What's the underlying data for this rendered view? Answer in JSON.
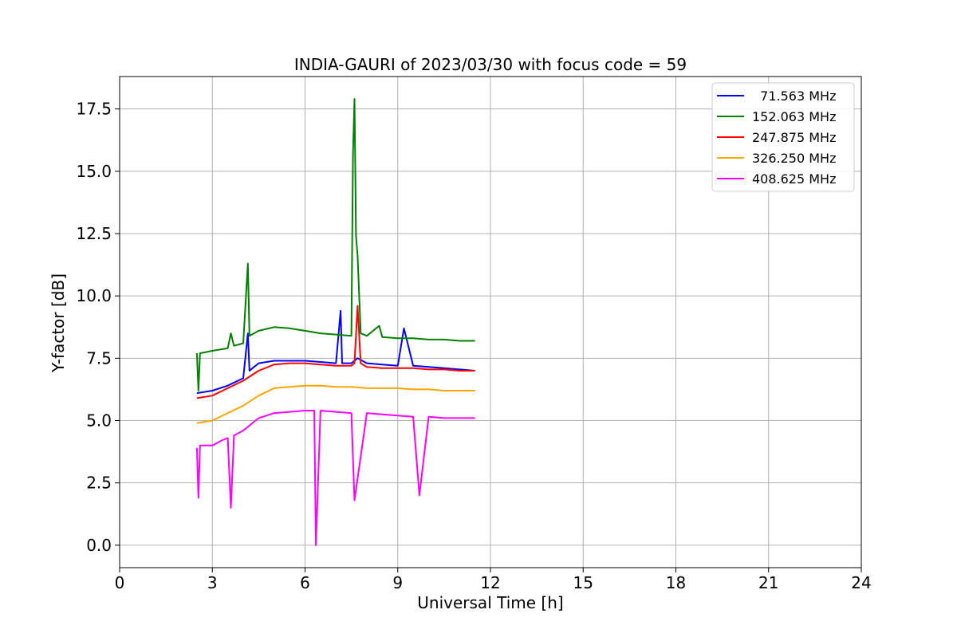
{
  "chart_data": {
    "type": "line",
    "title": "INDIA-GAURI of 2023/03/30 with focus code = 59",
    "xlabel": "Universal Time [h]",
    "ylabel": "Y-factor [dB]",
    "xlim": [
      0,
      24
    ],
    "ylim": [
      -0.9,
      18.8
    ],
    "x_ticks": [
      0,
      3,
      6,
      9,
      12,
      15,
      18,
      21,
      24
    ],
    "x_tick_labels": [
      "0",
      "3",
      "6",
      "9",
      "12",
      "15",
      "18",
      "21",
      "24"
    ],
    "y_ticks": [
      0.0,
      2.5,
      5.0,
      7.5,
      10.0,
      12.5,
      15.0,
      17.5
    ],
    "y_tick_labels": [
      "0.0",
      "2.5",
      "5.0",
      "7.5",
      "10.0",
      "12.5",
      "15.0",
      "17.5"
    ],
    "grid": true,
    "legend_position": "top-right",
    "series": [
      {
        "name": "  71.563 MHz",
        "color": "#0000ff",
        "x": [
          2.5,
          3.0,
          3.5,
          4.0,
          4.15,
          4.2,
          4.3,
          4.5,
          5.0,
          5.5,
          6.0,
          6.5,
          7.0,
          7.15,
          7.2,
          7.5,
          7.7,
          8.0,
          8.5,
          9.0,
          9.2,
          9.5,
          10.0,
          10.5,
          11.0,
          11.5
        ],
        "y": [
          6.1,
          6.2,
          6.4,
          6.7,
          8.5,
          7.0,
          7.1,
          7.3,
          7.4,
          7.4,
          7.4,
          7.35,
          7.3,
          9.4,
          7.3,
          7.3,
          7.5,
          7.3,
          7.25,
          7.2,
          8.7,
          7.2,
          7.15,
          7.1,
          7.05,
          7.0
        ]
      },
      {
        "name": "152.063 MHz",
        "color": "#008000",
        "x": [
          2.5,
          2.55,
          2.6,
          3.0,
          3.5,
          3.6,
          3.7,
          4.0,
          4.15,
          4.2,
          4.5,
          5.0,
          5.5,
          6.0,
          6.5,
          7.0,
          7.5,
          7.55,
          7.6,
          7.65,
          7.7,
          7.8,
          8.0,
          8.4,
          8.5,
          9.0,
          9.5,
          10.0,
          10.5,
          11.0,
          11.5
        ],
        "y": [
          7.7,
          6.2,
          7.7,
          7.8,
          7.9,
          8.5,
          8.0,
          8.1,
          11.3,
          8.4,
          8.6,
          8.75,
          8.7,
          8.6,
          8.5,
          8.45,
          8.4,
          15.7,
          17.9,
          12.4,
          11.6,
          8.5,
          8.4,
          8.8,
          8.35,
          8.3,
          8.3,
          8.25,
          8.25,
          8.2,
          8.2
        ]
      },
      {
        "name": "247.875 MHz",
        "color": "#ff0000",
        "x": [
          2.5,
          3.0,
          3.5,
          4.0,
          4.5,
          5.0,
          5.5,
          6.0,
          6.5,
          7.0,
          7.5,
          7.6,
          7.7,
          7.8,
          8.0,
          8.5,
          9.0,
          9.5,
          10.0,
          10.5,
          11.0,
          11.5
        ],
        "y": [
          5.9,
          6.0,
          6.3,
          6.6,
          7.0,
          7.25,
          7.3,
          7.3,
          7.25,
          7.2,
          7.2,
          7.3,
          9.6,
          7.3,
          7.15,
          7.1,
          7.1,
          7.1,
          7.05,
          7.05,
          7.0,
          7.0
        ]
      },
      {
        "name": "326.250 MHz",
        "color": "#ffa500",
        "x": [
          2.5,
          3.0,
          3.5,
          4.0,
          4.5,
          5.0,
          5.5,
          6.0,
          6.5,
          7.0,
          7.5,
          8.0,
          8.5,
          9.0,
          9.5,
          10.0,
          10.5,
          11.0,
          11.5
        ],
        "y": [
          4.9,
          5.0,
          5.3,
          5.6,
          6.0,
          6.3,
          6.35,
          6.4,
          6.4,
          6.35,
          6.35,
          6.3,
          6.3,
          6.3,
          6.25,
          6.25,
          6.2,
          6.2,
          6.2
        ]
      },
      {
        "name": "408.625 MHz",
        "color": "#ff00ff",
        "x": [
          2.5,
          2.55,
          2.6,
          3.0,
          3.3,
          3.5,
          3.6,
          3.7,
          4.0,
          4.3,
          4.5,
          5.0,
          5.5,
          6.0,
          6.3,
          6.35,
          6.5,
          7.0,
          7.5,
          7.6,
          8.0,
          8.5,
          9.0,
          9.5,
          9.7,
          10.0,
          10.5,
          11.0,
          11.5
        ],
        "y": [
          3.9,
          1.9,
          4.0,
          4.0,
          4.2,
          4.3,
          1.5,
          4.4,
          4.6,
          4.9,
          5.1,
          5.3,
          5.35,
          5.4,
          5.4,
          0.0,
          5.4,
          5.35,
          5.3,
          1.8,
          5.3,
          5.25,
          5.2,
          5.15,
          2.0,
          5.15,
          5.1,
          5.1,
          5.1
        ]
      }
    ]
  }
}
